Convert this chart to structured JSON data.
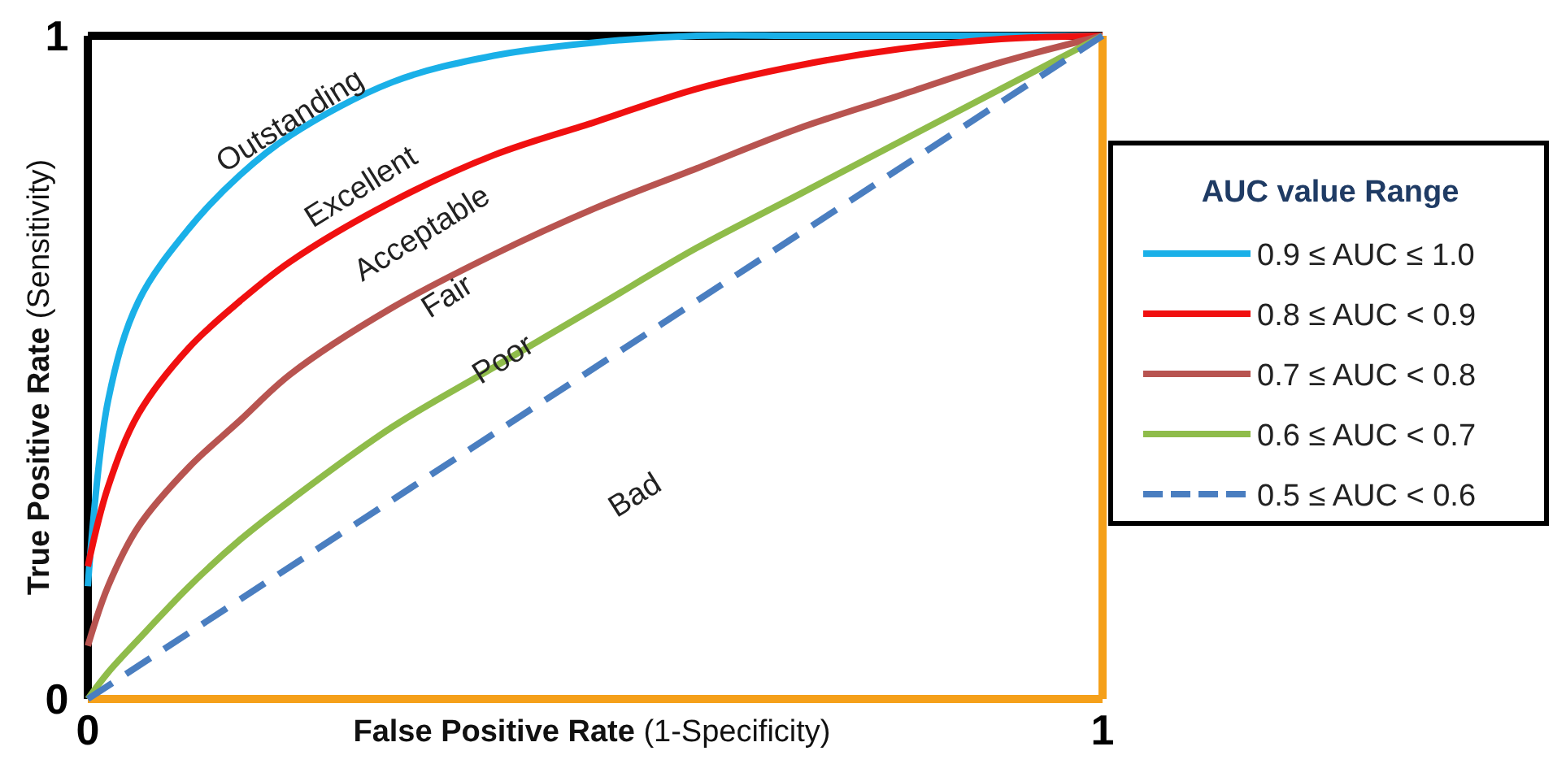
{
  "chart_data": {
    "type": "line",
    "xlabel": "False Positive Rate (1-Specificity)",
    "ylabel": "True Positive Rate (Sensitivity)",
    "legend_title": "AUC value Range",
    "legend": "right",
    "xlim": [
      0,
      1
    ],
    "ylim": [
      0,
      1
    ],
    "xticks": [
      0,
      1
    ],
    "yticks": [
      0,
      1
    ],
    "x": [
      0,
      0.02,
      0.05,
      0.1,
      0.15,
      0.2,
      0.3,
      0.4,
      0.5,
      0.6,
      0.7,
      0.8,
      0.9,
      1
    ],
    "series": [
      {
        "name": "0.9 ≤ AUC ≤ 1.0",
        "color": "#1ab0e8",
        "values": [
          0.17,
          0.45,
          0.6,
          0.71,
          0.79,
          0.85,
          0.93,
          0.97,
          0.99,
          1,
          1,
          1,
          1,
          1
        ]
      },
      {
        "name": "0.8 ≤ AUC < 0.9",
        "color": "#f01010",
        "values": [
          0.2,
          0.32,
          0.43,
          0.53,
          0.6,
          0.66,
          0.75,
          0.82,
          0.87,
          0.92,
          0.955,
          0.98,
          0.995,
          1
        ]
      },
      {
        "name": "0.7 ≤ AUC < 0.8",
        "color": "#b85450",
        "values": [
          0.08,
          0.17,
          0.26,
          0.35,
          0.42,
          0.49,
          0.59,
          0.67,
          0.74,
          0.8,
          0.86,
          0.91,
          0.96,
          1
        ]
      },
      {
        "name": "0.6 ≤ AUC < 0.7",
        "color": "#8fbc4a",
        "values": [
          0,
          0.04,
          0.09,
          0.17,
          0.24,
          0.3,
          0.41,
          0.5,
          0.59,
          0.68,
          0.76,
          0.84,
          0.92,
          1
        ]
      },
      {
        "name": "0.5 ≤ AUC < 0.6",
        "color": "#4a7ec0",
        "line_style": "dashed",
        "x": [
          0,
          1
        ],
        "values": [
          0,
          1
        ]
      }
    ],
    "annotations": [
      "Outstanding",
      "Excellent",
      "Acceptable",
      "Fair",
      "Poor",
      "Bad"
    ]
  }
}
